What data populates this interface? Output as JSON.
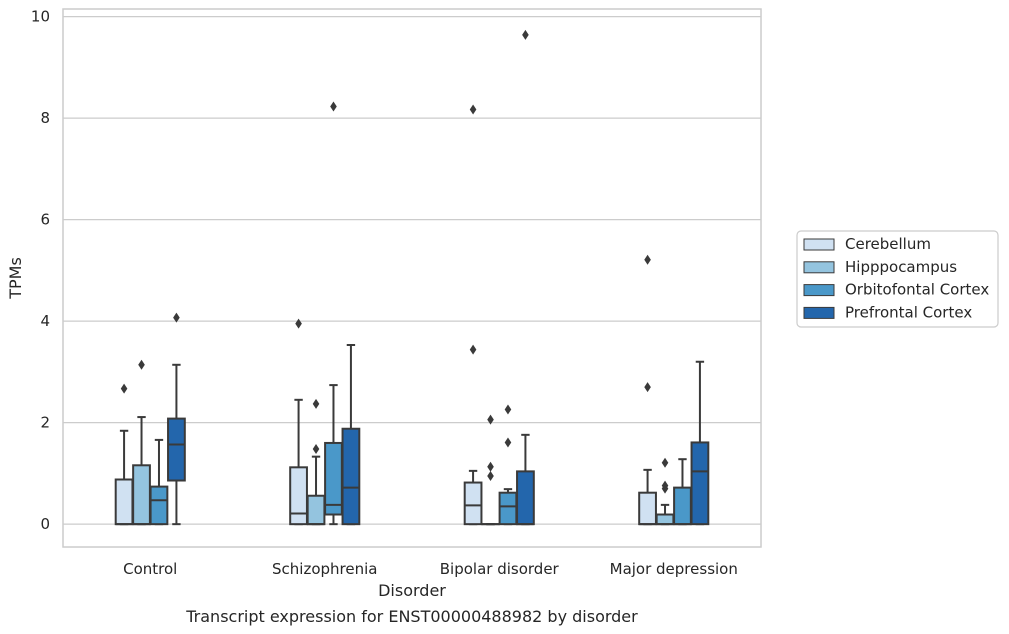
{
  "caption": "Transcript expression for ENST00000488982 by disorder",
  "chart_data": {
    "type": "box",
    "xlabel": "Disorder",
    "ylabel": "TPMs",
    "ylim": [
      -0.45,
      10.15
    ],
    "yticks": [
      0,
      2,
      4,
      6,
      8,
      10
    ],
    "grid": true,
    "legend_position": "right",
    "categories": [
      "Control",
      "Schizophrenia",
      "Bipolar disorder",
      "Major depression"
    ],
    "series": [
      {
        "name": "Cerebellum",
        "color": "#d0e1f2",
        "boxes": [
          {
            "whisker_low": 0,
            "q1": 0,
            "median": 0,
            "q3": 0.88,
            "whisker_high": 1.84,
            "outliers": [
              2.67
            ]
          },
          {
            "whisker_low": 0,
            "q1": 0,
            "median": 0.21,
            "q3": 1.12,
            "whisker_high": 2.45,
            "outliers": [
              3.95
            ]
          },
          {
            "whisker_low": 0,
            "q1": 0,
            "median": 0.37,
            "q3": 0.82,
            "whisker_high": 1.05,
            "outliers": [
              3.44,
              8.17
            ]
          },
          {
            "whisker_low": 0,
            "q1": 0,
            "median": 0,
            "q3": 0.62,
            "whisker_high": 1.07,
            "outliers": [
              2.7,
              5.21
            ]
          }
        ]
      },
      {
        "name": "Hipppocampus",
        "color": "#94c4df",
        "boxes": [
          {
            "whisker_low": 0,
            "q1": 0,
            "median": 0,
            "q3": 1.16,
            "whisker_high": 2.11,
            "outliers": [
              3.14
            ]
          },
          {
            "whisker_low": 0,
            "q1": 0,
            "median": 0,
            "q3": 0.56,
            "whisker_high": 1.33,
            "outliers": [
              1.48,
              2.37
            ]
          },
          {
            "whisker_low": 0,
            "q1": 0,
            "median": 0,
            "q3": 0,
            "whisker_high": 0,
            "outliers": [
              0.95,
              1.13,
              2.06
            ]
          },
          {
            "whisker_low": 0,
            "q1": 0,
            "median": 0,
            "q3": 0.19,
            "whisker_high": 0.38,
            "outliers": [
              0.7,
              0.76,
              1.21
            ]
          }
        ]
      },
      {
        "name": "Orbitofontal Cortex",
        "color": "#4a98c9",
        "boxes": [
          {
            "whisker_low": 0,
            "q1": 0,
            "median": 0.47,
            "q3": 0.74,
            "whisker_high": 1.66,
            "outliers": []
          },
          {
            "whisker_low": 0,
            "q1": 0.19,
            "median": 0.38,
            "q3": 1.6,
            "whisker_high": 2.74,
            "outliers": [
              8.23
            ]
          },
          {
            "whisker_low": 0,
            "q1": 0,
            "median": 0.35,
            "q3": 0.62,
            "whisker_high": 0.69,
            "outliers": [
              1.61,
              2.26
            ]
          },
          {
            "whisker_low": 0,
            "q1": 0,
            "median": 0,
            "q3": 0.72,
            "whisker_high": 1.28,
            "outliers": []
          }
        ]
      },
      {
        "name": "Prefrontal Cortex",
        "color": "#2366ac",
        "boxes": [
          {
            "whisker_low": 0,
            "q1": 0.86,
            "median": 1.57,
            "q3": 2.08,
            "whisker_high": 3.14,
            "outliers": [
              4.07
            ]
          },
          {
            "whisker_low": 0,
            "q1": 0,
            "median": 0.72,
            "q3": 1.88,
            "whisker_high": 3.53,
            "outliers": []
          },
          {
            "whisker_low": 0,
            "q1": 0,
            "median": 0,
            "q3": 1.04,
            "whisker_high": 1.76,
            "outliers": [
              9.64
            ]
          },
          {
            "whisker_low": 0,
            "q1": 0,
            "median": 1.04,
            "q3": 1.61,
            "whisker_high": 3.2,
            "outliers": []
          }
        ]
      }
    ]
  }
}
